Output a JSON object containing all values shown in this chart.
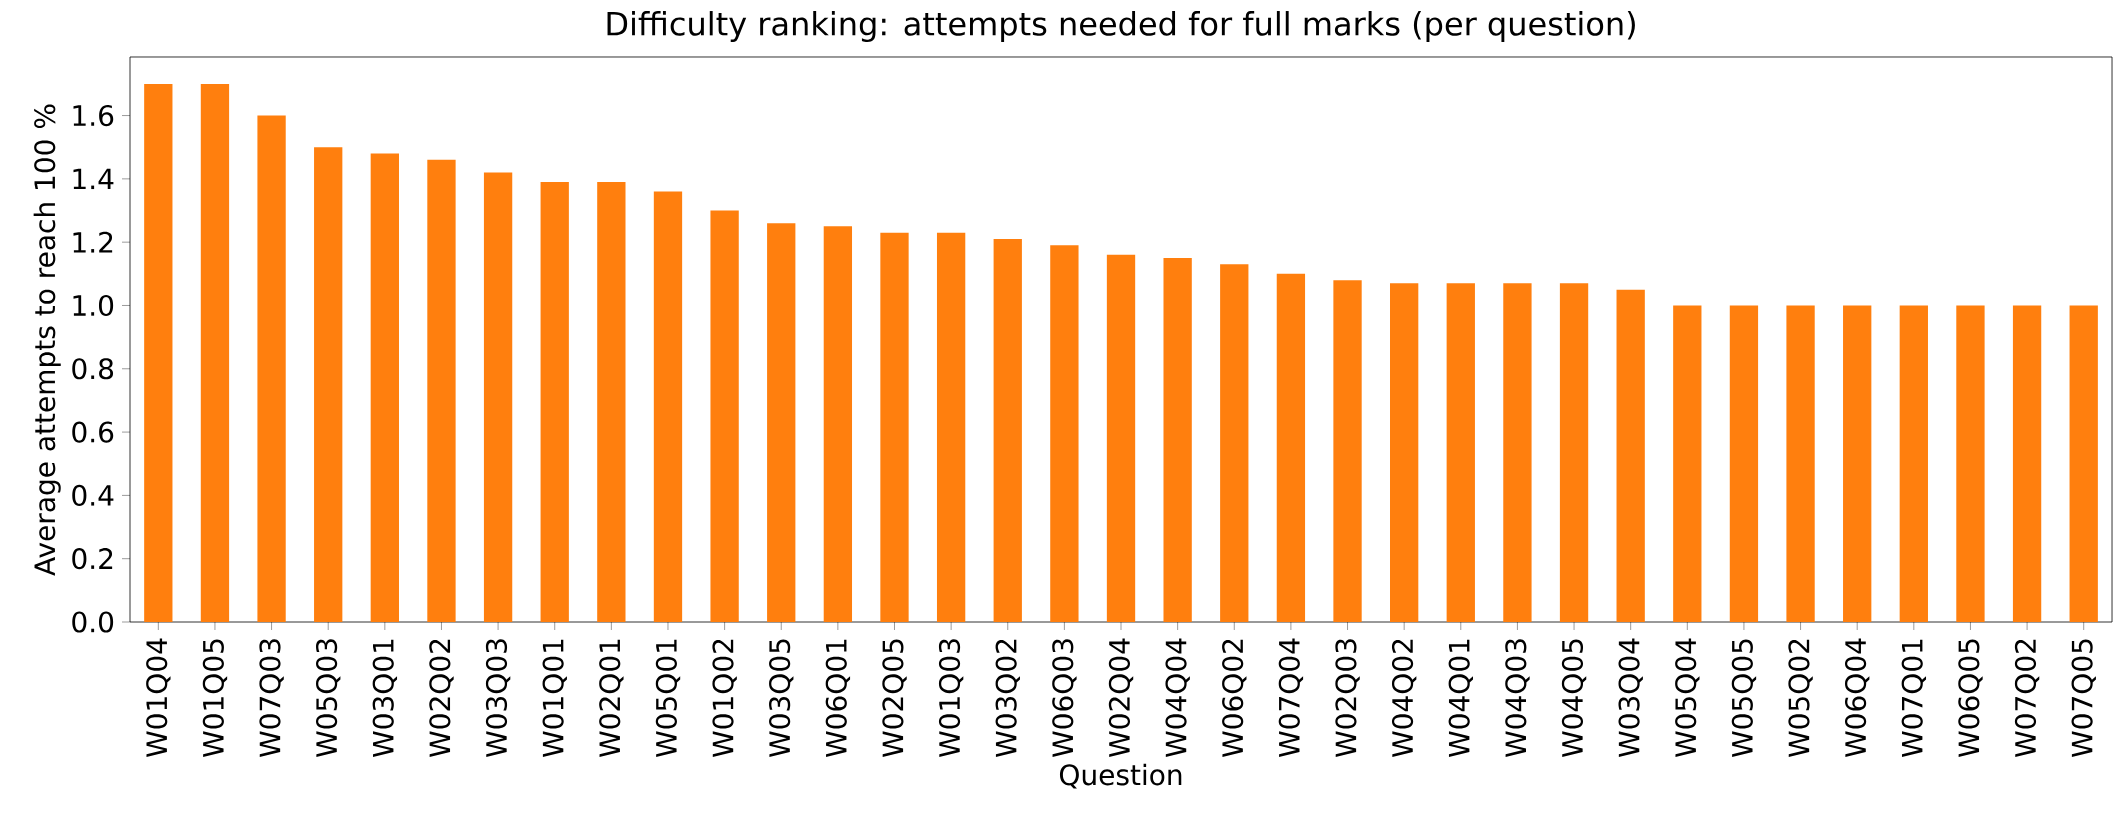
{
  "chart_data": {
    "type": "bar",
    "title": "Difficulty ranking: attempts needed for full marks (per question)",
    "xlabel": "Question",
    "ylabel": "Average attempts to reach 100 %",
    "categories": [
      "W01Q04",
      "W01Q05",
      "W07Q03",
      "W05Q03",
      "W03Q01",
      "W02Q02",
      "W03Q03",
      "W01Q01",
      "W02Q01",
      "W05Q01",
      "W01Q02",
      "W03Q05",
      "W06Q01",
      "W02Q05",
      "W01Q03",
      "W03Q02",
      "W06Q03",
      "W02Q04",
      "W04Q04",
      "W06Q02",
      "W07Q04",
      "W02Q03",
      "W04Q02",
      "W04Q01",
      "W04Q03",
      "W04Q05",
      "W03Q04",
      "W05Q04",
      "W05Q05",
      "W05Q02",
      "W06Q04",
      "W07Q01",
      "W06Q05",
      "W07Q02",
      "W07Q05"
    ],
    "values": [
      1.7,
      1.7,
      1.6,
      1.5,
      1.48,
      1.46,
      1.42,
      1.39,
      1.39,
      1.36,
      1.3,
      1.26,
      1.25,
      1.23,
      1.23,
      1.21,
      1.19,
      1.16,
      1.15,
      1.13,
      1.1,
      1.08,
      1.07,
      1.07,
      1.07,
      1.07,
      1.05,
      1.0,
      1.0,
      1.0,
      1.0,
      1.0,
      1.0,
      1.0,
      1.0
    ],
    "color": "#ff7f0e",
    "ylim": [
      0,
      1.785
    ],
    "yticks": [
      {
        "value": 0,
        "label": "0.0"
      },
      {
        "value": 0.2,
        "label": "0.2"
      },
      {
        "value": 0.4,
        "label": "0.4"
      },
      {
        "value": 0.6,
        "label": "0.6"
      },
      {
        "value": 0.8,
        "label": "0.8"
      },
      {
        "value": 1.0,
        "label": "1.0"
      },
      {
        "value": 1.2,
        "label": "1.2"
      },
      {
        "value": 1.4,
        "label": "1.4"
      },
      {
        "value": 1.6,
        "label": "1.6"
      }
    ]
  }
}
